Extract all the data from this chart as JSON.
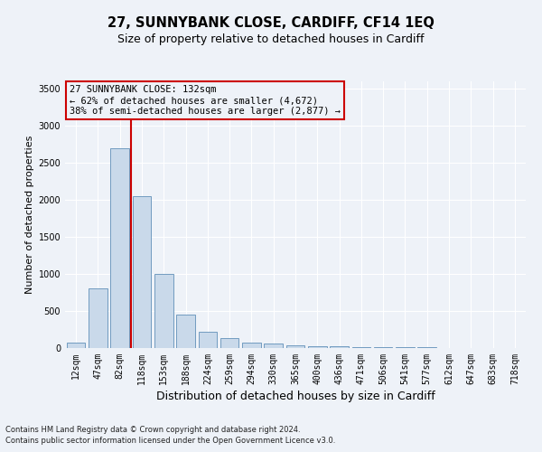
{
  "title": "27, SUNNYBANK CLOSE, CARDIFF, CF14 1EQ",
  "subtitle": "Size of property relative to detached houses in Cardiff",
  "xlabel": "Distribution of detached houses by size in Cardiff",
  "ylabel": "Number of detached properties",
  "footnote1": "Contains HM Land Registry data © Crown copyright and database right 2024.",
  "footnote2": "Contains public sector information licensed under the Open Government Licence v3.0.",
  "categories": [
    "12sqm",
    "47sqm",
    "82sqm",
    "118sqm",
    "153sqm",
    "188sqm",
    "224sqm",
    "259sqm",
    "294sqm",
    "330sqm",
    "365sqm",
    "400sqm",
    "436sqm",
    "471sqm",
    "506sqm",
    "541sqm",
    "577sqm",
    "612sqm",
    "647sqm",
    "683sqm",
    "718sqm"
  ],
  "values": [
    75,
    800,
    2700,
    2050,
    1000,
    450,
    220,
    140,
    75,
    55,
    40,
    30,
    20,
    18,
    12,
    8,
    7,
    5,
    4,
    3,
    2
  ],
  "bar_color": "#c9d9ea",
  "bar_edge_color": "#6090b8",
  "vline_x": 2.5,
  "vline_color": "#cc0000",
  "ylim": [
    0,
    3600
  ],
  "yticks": [
    0,
    500,
    1000,
    1500,
    2000,
    2500,
    3000,
    3500
  ],
  "annotation_line1": "27 SUNNYBANK CLOSE: 132sqm",
  "annotation_line2": "← 62% of detached houses are smaller (4,672)",
  "annotation_line3": "38% of semi-detached houses are larger (2,877) →",
  "annotation_box_edgecolor": "#cc0000",
  "bg_color": "#eef2f8",
  "grid_color": "#ffffff",
  "title_fontsize": 10.5,
  "subtitle_fontsize": 9,
  "tick_fontsize": 7,
  "ylabel_fontsize": 8,
  "xlabel_fontsize": 9,
  "annotation_fontsize": 7.5,
  "footnote_fontsize": 6
}
